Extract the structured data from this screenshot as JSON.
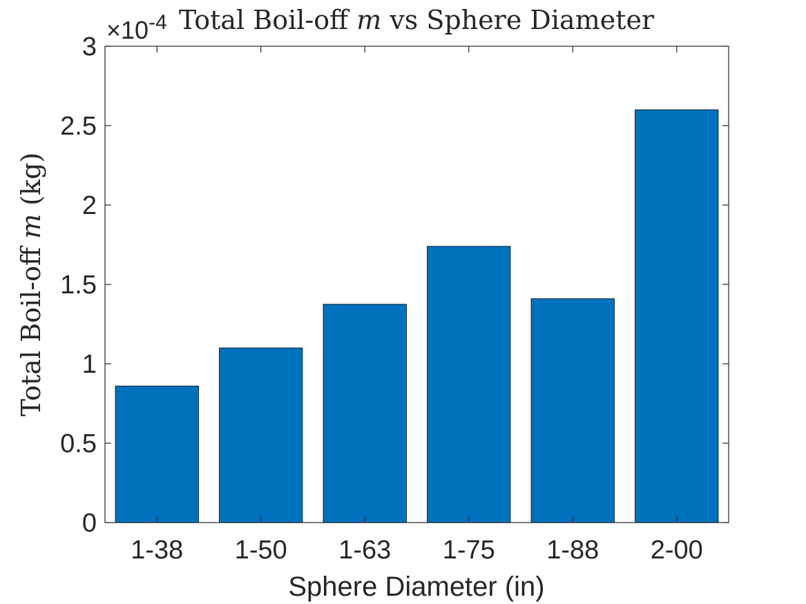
{
  "chart_data": {
    "type": "bar",
    "title_prefix": "Total Boil-off ",
    "title_var": "m",
    "title_suffix": " vs Sphere Diameter",
    "xlabel": "Sphere Diameter (in)",
    "ylabel_prefix": "Total Boil-off ",
    "ylabel_var": "m",
    "ylabel_suffix": " (kg)",
    "exponent_base": "×10",
    "exponent_power": "-4",
    "categories": [
      "1-38",
      "1-50",
      "1-63",
      "1-75",
      "1-88",
      "2-00"
    ],
    "values": [
      0.86,
      1.1,
      1.375,
      1.74,
      1.41,
      2.6
    ],
    "value_scale": "1e-4",
    "ylim": [
      0,
      3
    ],
    "yticks": [
      0,
      0.5,
      1,
      1.5,
      2,
      2.5,
      3
    ],
    "ytick_labels": [
      "0",
      "0.5",
      "1",
      "1.5",
      "2",
      "2.5",
      "3"
    ],
    "bar_color": "#0072BD",
    "grid": false,
    "legend": "none"
  }
}
